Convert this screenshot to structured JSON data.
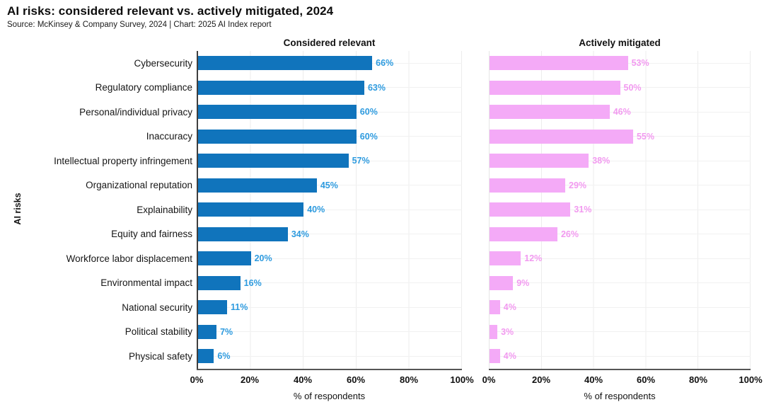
{
  "header": {
    "title": "AI risks: considered relevant vs. actively mitigated, 2024",
    "source": "Source: McKinsey & Company Survey, 2024 | Chart: 2025 AI Index report"
  },
  "chart_data": {
    "type": "bar",
    "orientation": "horizontal",
    "title": "AI risks: considered relevant vs. actively mitigated, 2024",
    "xlabel": "% of respondents",
    "ylabel": "AI risks",
    "xlim": [
      0,
      100
    ],
    "xticks": [
      "0%",
      "20%",
      "40%",
      "60%",
      "80%",
      "100%"
    ],
    "grid": "vertical gridlines every 20%, faint horizontal line per row",
    "legend_position": "panel titles above each subplot",
    "value_suffix": "%",
    "categories": [
      "Cybersecurity",
      "Regulatory compliance",
      "Personal/individual privacy",
      "Inaccuracy",
      "Intellectual property infringement",
      "Organizational reputation",
      "Explainability",
      "Equity and fairness",
      "Workforce labor displacement",
      "Environmental impact",
      "National security",
      "Political stability",
      "Physical safety"
    ],
    "series": [
      {
        "name": "Considered relevant",
        "color": "#1074BC",
        "label_color": "#2E9BDF",
        "values": [
          66,
          63,
          60,
          60,
          57,
          45,
          40,
          34,
          20,
          16,
          11,
          7,
          6
        ]
      },
      {
        "name": "Actively mitigated",
        "color": "#F4AAF7",
        "label_color": "#F29AF0",
        "values": [
          53,
          50,
          46,
          55,
          38,
          29,
          31,
          26,
          12,
          9,
          4,
          3,
          4
        ]
      }
    ]
  }
}
